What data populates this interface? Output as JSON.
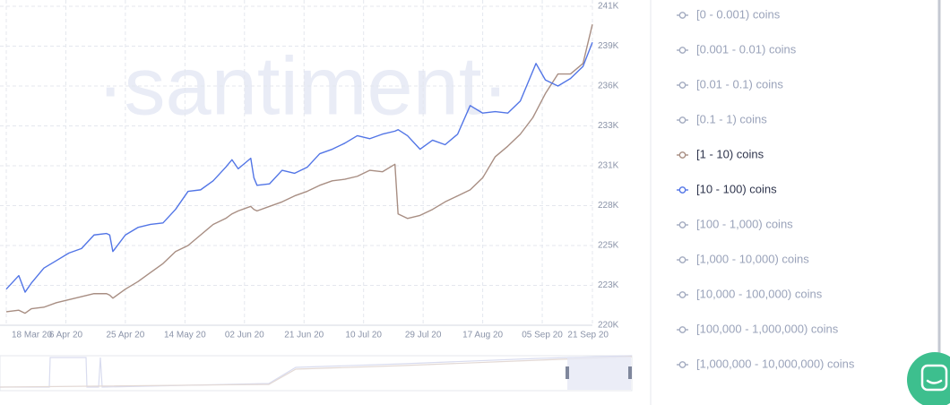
{
  "chart_data": {
    "type": "line",
    "watermark": "·santiment·",
    "x": [
      "18 Mar 20",
      "22 Mar 20",
      "24 Mar 20",
      "26 Mar 20",
      "30 Mar 20",
      "03 Apr 20",
      "07 Apr 20",
      "11 Apr 20",
      "15 Apr 20",
      "19 Apr 20",
      "20 Apr 20",
      "21 Apr 20",
      "25 Apr 20",
      "29 Apr 20",
      "03 May 20",
      "07 May 20",
      "11 May 20",
      "15 May 20",
      "19 May 20",
      "23 May 20",
      "27 May 20",
      "29 May 20",
      "31 May 20",
      "04 Jun 20",
      "05 Jun 20",
      "06 Jun 20",
      "10 Jun 20",
      "14 Jun 20",
      "18 Jun 20",
      "22 Jun 20",
      "26 Jun 20",
      "30 Jun 20",
      "04 Jul 20",
      "08 Jul 20",
      "12 Jul 20",
      "16 Jul 20",
      "20 Jul 20",
      "21 Jul 20",
      "24 Jul 20",
      "28 Jul 20",
      "01 Aug 20",
      "05 Aug 20",
      "09 Aug 20",
      "13 Aug 20",
      "17 Aug 20",
      "21 Aug 20",
      "25 Aug 20",
      "29 Aug 20",
      "02 Sep 20",
      "03 Sep 20",
      "06 Sep 20",
      "10 Sep 20",
      "14 Sep 20",
      "18 Sep 20",
      "21 Sep 20"
    ],
    "xlim": [
      "18 Mar 20",
      "21 Sep 20"
    ],
    "xticks": [
      "18 Mar 20",
      "6 Apr 20",
      "25 Apr 20",
      "14 May 20",
      "02 Jun 20",
      "21 Jun 20",
      "10 Jul 20",
      "29 Jul 20",
      "17 Aug 20",
      "05 Sep 20",
      "21 Sep 20"
    ],
    "ylim": [
      220,
      241.2
    ],
    "yticks": [
      {
        "value": 220,
        "label": "220K"
      },
      {
        "value": 222.65,
        "label": "223K"
      },
      {
        "value": 225.3,
        "label": "225K"
      },
      {
        "value": 227.95,
        "label": "228K"
      },
      {
        "value": 230.6,
        "label": "231K"
      },
      {
        "value": 233.25,
        "label": "233K"
      },
      {
        "value": 235.9,
        "label": "236K"
      },
      {
        "value": 238.55,
        "label": "239K"
      },
      {
        "value": 241.2,
        "label": "241K"
      }
    ],
    "grid": true,
    "series": [
      {
        "name": "[0 - 0.001) coins",
        "visible": false
      },
      {
        "name": "[0.001 - 0.01) coins",
        "visible": false
      },
      {
        "name": "[0.01 - 0.1) coins",
        "visible": false
      },
      {
        "name": "[0.1 - 1) coins",
        "visible": false
      },
      {
        "name": "[1 - 10) coins",
        "visible": true,
        "color": "#a88e83",
        "values": [
          220.9,
          221.0,
          220.8,
          221.1,
          221.2,
          221.5,
          221.7,
          221.9,
          222.1,
          222.1,
          222.0,
          221.8,
          222.4,
          222.9,
          223.5,
          224.1,
          224.9,
          225.3,
          226.0,
          226.7,
          227.1,
          227.4,
          227.6,
          227.9,
          227.7,
          227.6,
          227.9,
          228.2,
          228.6,
          228.9,
          229.3,
          229.6,
          229.7,
          229.9,
          230.3,
          230.2,
          230.7,
          227.4,
          227.1,
          227.3,
          227.7,
          228.2,
          228.6,
          229.0,
          229.8,
          231.2,
          231.9,
          232.7,
          233.8,
          234.2,
          235.4,
          236.7,
          236.7,
          237.4,
          240.0
        ]
      },
      {
        "name": "[10 - 100) coins",
        "visible": true,
        "color": "#5275e6",
        "values": [
          222.4,
          223.3,
          222.2,
          222.8,
          223.8,
          224.3,
          224.8,
          225.1,
          226.0,
          226.1,
          226.0,
          224.9,
          226.0,
          226.5,
          226.7,
          226.8,
          227.7,
          228.9,
          229.0,
          229.6,
          230.5,
          231.0,
          230.4,
          231.1,
          229.8,
          229.3,
          229.4,
          230.3,
          230.1,
          230.5,
          231.4,
          231.7,
          232.1,
          232.6,
          232.4,
          232.7,
          232.9,
          233.0,
          232.6,
          231.7,
          232.3,
          232.0,
          232.7,
          234.6,
          234.1,
          234.2,
          234.1,
          234.9,
          236.9,
          237.4,
          236.3,
          235.9,
          236.4,
          237.2,
          238.8
        ]
      },
      {
        "name": "[100 - 1,000) coins",
        "visible": false
      },
      {
        "name": "[1,000 - 10,000) coins",
        "visible": false
      },
      {
        "name": "[10,000 - 100,000) coins",
        "visible": false
      },
      {
        "name": "[100,000 - 1,000,000) coins",
        "visible": false
      },
      {
        "name": "[1,000,000 - 10,000,000) coins",
        "visible": false
      }
    ]
  }
}
